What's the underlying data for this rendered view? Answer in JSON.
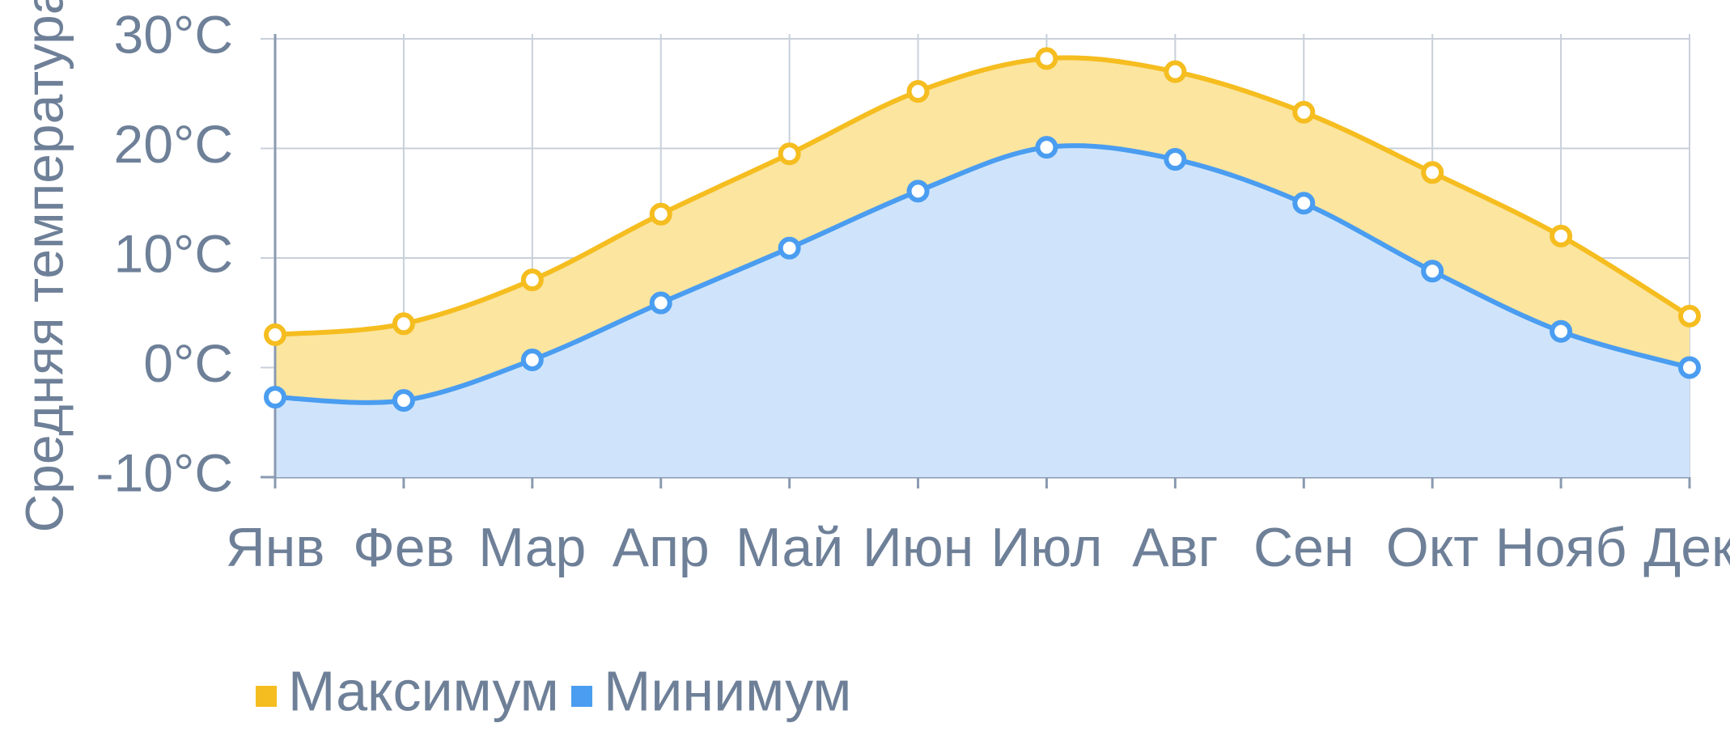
{
  "chart_data": {
    "type": "area",
    "y_label": "Средняя температура",
    "categories": [
      "Янв",
      "Фев",
      "Мар",
      "Апр",
      "Май",
      "Июн",
      "Июл",
      "Авг",
      "Сен",
      "Окт",
      "Нояб",
      "Дек"
    ],
    "series": [
      {
        "name": "Максимум",
        "color": "#f5bd1f",
        "fill": "#fbe59f",
        "values": [
          3,
          4,
          8,
          14,
          19.5,
          25.2,
          28.2,
          27,
          23.3,
          17.8,
          12,
          4.7
        ]
      },
      {
        "name": "Минимум",
        "color": "#4a9df0",
        "fill": "#cfe4fb",
        "values": [
          -2.7,
          -3,
          0.7,
          5.9,
          10.9,
          16.1,
          20.1,
          19,
          15,
          8.8,
          3.3,
          0
        ]
      }
    ],
    "ylim": [
      -10,
      30
    ],
    "yticks": [
      {
        "value": -10,
        "label": "-10°C"
      },
      {
        "value": 0,
        "label": "0°C"
      },
      {
        "value": 10,
        "label": "10°C"
      },
      {
        "value": 20,
        "label": "20°C"
      },
      {
        "value": 30,
        "label": "30°C"
      }
    ],
    "grid": true,
    "legend": "bottom"
  }
}
